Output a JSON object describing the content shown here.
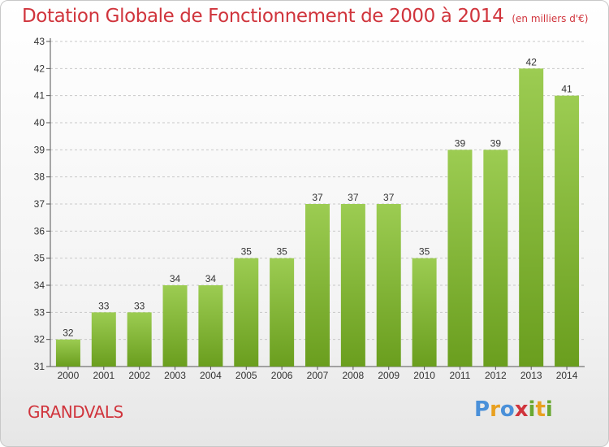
{
  "header": {
    "title": "Dotation Globale de Fonctionnement de 2000 à 2014",
    "unit": "(en milliers d'€)"
  },
  "footer": {
    "commune": "GRANDVALS",
    "logo_letters": [
      "P",
      "r",
      "o",
      "x",
      "i",
      "t",
      "i"
    ]
  },
  "colors": {
    "title": "#d0343c",
    "bar_top": "#9ccc52",
    "bar_bottom": "#6a9e1e"
  },
  "chart_data": {
    "type": "bar",
    "title": "Dotation Globale de Fonctionnement de 2000 à 2014",
    "subtitle": "(en milliers d'€)",
    "categories": [
      "2000",
      "2001",
      "2002",
      "2003",
      "2004",
      "2005",
      "2006",
      "2007",
      "2008",
      "2009",
      "2010",
      "2011",
      "2012",
      "2013",
      "2014"
    ],
    "values": [
      32,
      33,
      33,
      34,
      34,
      35,
      35,
      37,
      37,
      37,
      35,
      39,
      39,
      42,
      41
    ],
    "ylim": [
      31,
      43
    ],
    "yticks": [
      31,
      32,
      33,
      34,
      35,
      36,
      37,
      38,
      39,
      40,
      41,
      42,
      43
    ],
    "grid": true,
    "data_labels": true
  }
}
